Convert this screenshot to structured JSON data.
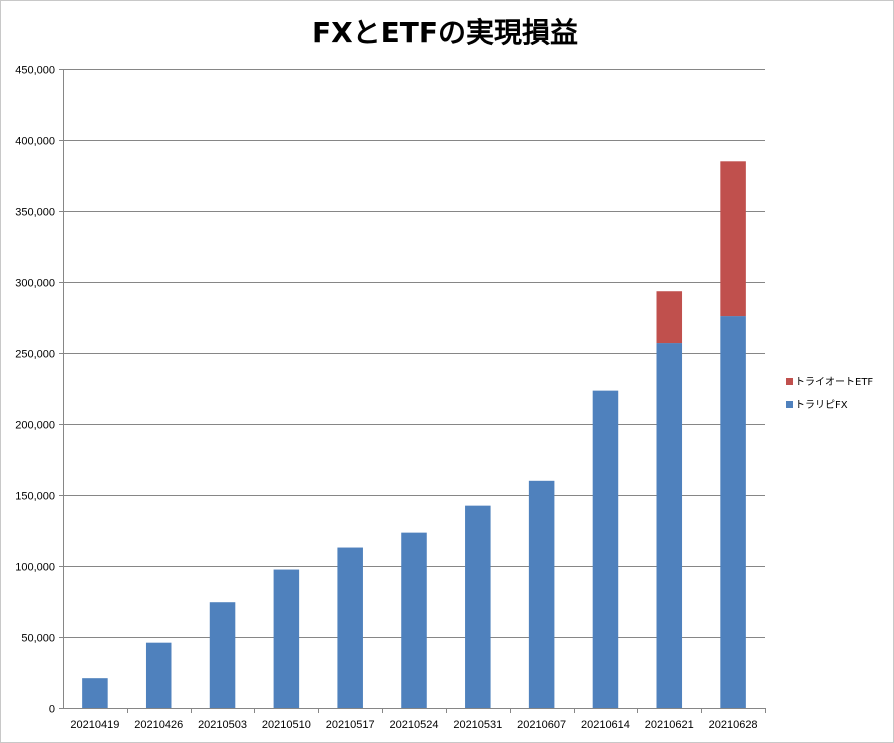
{
  "chart_data": {
    "type": "bar",
    "stacked": true,
    "title": "FXとETFの実現損益",
    "xlabel": "",
    "ylabel": "",
    "categories": [
      "20210419",
      "20210426",
      "20210503",
      "20210510",
      "20210517",
      "20210524",
      "20210531",
      "20210607",
      "20210614",
      "20210621",
      "20210628"
    ],
    "series": [
      {
        "name": "トラリピFX",
        "color": "#4f81bd",
        "values": [
          21000,
          46000,
          74500,
          97500,
          113000,
          123500,
          142500,
          160000,
          223500,
          257000,
          276000
        ]
      },
      {
        "name": "トライオートETF",
        "color": "#c0504d",
        "values": [
          0,
          0,
          0,
          0,
          0,
          0,
          0,
          0,
          0,
          36500,
          109000
        ]
      }
    ],
    "ylim": [
      0,
      450000
    ],
    "yticks": [
      0,
      50000,
      100000,
      150000,
      200000,
      250000,
      300000,
      350000,
      400000,
      450000
    ],
    "ytick_labels": [
      "0",
      "50,000",
      "100,000",
      "150,000",
      "200,000",
      "250,000",
      "300,000",
      "350,000",
      "400,000",
      "450,000"
    ],
    "grid": true,
    "legend_position": "right"
  }
}
